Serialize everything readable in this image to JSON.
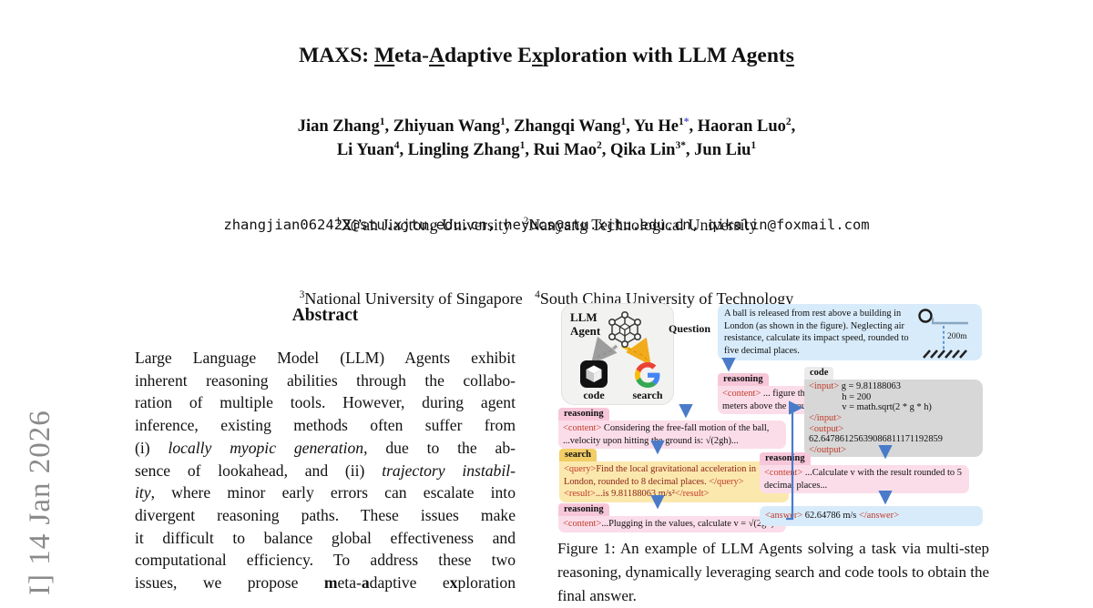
{
  "watermark": {
    "text": "I]  14 Jan 2026",
    "color": "#8a8a8a"
  },
  "title": {
    "segments": [
      {
        "t": "MAXS: "
      },
      {
        "t": "M",
        "u": 1
      },
      {
        "t": "eta-"
      },
      {
        "t": "A",
        "u": 1
      },
      {
        "t": "daptive E"
      },
      {
        "t": "x",
        "u": 1
      },
      {
        "t": "ploration with LLM Agent"
      },
      {
        "t": "s",
        "u": 1
      }
    ]
  },
  "authors": {
    "line1": [
      {
        "t": "Jian Zhang"
      },
      {
        "t": "1",
        "sup": 1
      },
      {
        "t": ", Zhiyuan Wang"
      },
      {
        "t": "1",
        "sup": 1
      },
      {
        "t": ", Zhangqi Wang"
      },
      {
        "t": "1",
        "sup": 1
      },
      {
        "t": ", Yu He"
      },
      {
        "t": "1",
        "sup": 1
      },
      {
        "t": "*",
        "sup": 1,
        "c": "blue"
      },
      {
        "t": ", Haoran Luo"
      },
      {
        "t": "2",
        "sup": 1
      },
      {
        "t": ","
      }
    ],
    "line2": [
      {
        "t": "Li Yuan"
      },
      {
        "t": "4",
        "sup": 1
      },
      {
        "t": ", Lingling Zhang"
      },
      {
        "t": "1",
        "sup": 1
      },
      {
        "t": ", Rui Mao"
      },
      {
        "t": "2",
        "sup": 1
      },
      {
        "t": ", Qika Lin"
      },
      {
        "t": "3*",
        "sup": 1
      },
      {
        "t": ", Jun Liu"
      },
      {
        "t": "1",
        "sup": 1
      }
    ]
  },
  "affiliations": {
    "line1": [
      {
        "t": "1",
        "sup": 1
      },
      {
        "t": "Xi’an Jiaotong University"
      },
      {
        "t": "   "
      },
      {
        "t": "2",
        "sup": 1
      },
      {
        "t": "Nanyang Technological University"
      }
    ],
    "line2": [
      {
        "t": "3",
        "sup": 1
      },
      {
        "t": "National University of Singapore"
      },
      {
        "t": "   "
      },
      {
        "t": "4",
        "sup": 1
      },
      {
        "t": "South China University of Technology"
      }
    ]
  },
  "emails": "zhangjian062422@stu.xjtu.edu.cn, heyucs@stu.xjtu.edu.cn, qikalin@foxmail.com",
  "abstract": {
    "heading": "Abstract",
    "lines": [
      [
        {
          "t": "Large Language Model (LLM) Agents exhibit"
        }
      ],
      [
        {
          "t": "inherent reasoning abilities through the collabo-"
        }
      ],
      [
        {
          "t": "ration of multiple tools. However, during agent"
        }
      ],
      [
        {
          "t": "inference, existing methods often suffer from"
        }
      ],
      [
        {
          "t": "(i) "
        },
        {
          "t": "locally myopic generation",
          "i": 1
        },
        {
          "t": ", due to the ab-"
        }
      ],
      [
        {
          "t": "sence of lookahead, and (ii) "
        },
        {
          "t": "trajectory instabil-",
          "i": 1
        }
      ],
      [
        {
          "t": "ity",
          "i": 1
        },
        {
          "t": ", where minor early errors can escalate into"
        }
      ],
      [
        {
          "t": "divergent reasoning paths. These issues make"
        }
      ],
      [
        {
          "t": "it difficult to balance global effectiveness and"
        }
      ],
      [
        {
          "t": "computational efficiency. To address these two"
        }
      ],
      [
        {
          "t": "issues, we propose "
        },
        {
          "t": "m",
          "b": 1
        },
        {
          "t": "eta-"
        },
        {
          "t": "a",
          "b": 1
        },
        {
          "t": "daptive e"
        },
        {
          "t": "x",
          "b": 1
        },
        {
          "t": "ploration"
        }
      ]
    ]
  },
  "figure": {
    "agent": {
      "name_line1": "LLM",
      "name_line2": "Agent",
      "tool_code": "code",
      "tool_search": "search"
    },
    "question": {
      "label": "Question",
      "text": "A ball is released from rest above a building in London (as shown in the figure). Neglecting air resistance, calculate its impact speed, rounded to five decimal places.",
      "height_label": "200m"
    },
    "steps": {
      "reasoning1": {
        "header": "reasoning",
        "segments": [
          {
            "t": "<content>",
            "c": "tag"
          },
          {
            "t": " ... figure that the ball is 200 meters above the ground."
          }
        ]
      },
      "reasoning2": {
        "header": "reasoning",
        "segments": [
          {
            "t": "<content>",
            "c": "tag"
          },
          {
            "t": " Considering the free-fall motion of the ball, ...velocity upon hitting the ground is: √(2gh)..."
          }
        ]
      },
      "search": {
        "header": "search",
        "segments": [
          {
            "t": "<query>",
            "c": "tag"
          },
          {
            "t": "Find the local gravitational acceleration in London, rounded to 8 decimal places. ",
            "c": "dred"
          },
          {
            "t": "</query>",
            "c": "tag"
          },
          {
            "br": 1
          },
          {
            "t": "<result>",
            "c": "tag"
          },
          {
            "t": "...is 9.81188063 m/s²",
            "c": "dred"
          },
          {
            "t": "</result>",
            "c": "tag"
          }
        ]
      },
      "reasoning3": {
        "header": "reasoning",
        "segments": [
          {
            "t": "<content>",
            "c": "tag"
          },
          {
            "t": "...Plugging in the values, calculate v = √(2gh)"
          }
        ]
      },
      "code": {
        "header": "code",
        "lines": [
          [
            {
              "t": "<input>",
              "c": "tag"
            },
            {
              "t": " g = 9.81188063"
            }
          ],
          [
            {
              "t": "              h = 200"
            }
          ],
          [
            {
              "t": "              v = math.sqrt(2 * g * h)"
            }
          ],
          [
            {
              "t": "</input>",
              "c": "tag"
            }
          ],
          [
            {
              "t": "<output>",
              "c": "tag"
            }
          ],
          [
            {
              "t": "62.64786125639086811171192859"
            }
          ],
          [
            {
              "t": "</output>",
              "c": "tag"
            }
          ]
        ]
      },
      "reasoning4": {
        "header": "reasoning",
        "segments": [
          {
            "t": "<content>",
            "c": "tag"
          },
          {
            "t": " ...Calculate v with the result rounded to 5 decimal places..."
          }
        ]
      },
      "answer": {
        "segments": [
          {
            "t": "<answer>",
            "c": "tag"
          },
          {
            "t": " 62.64786 m/s "
          },
          {
            "t": "</answer>",
            "c": "tag"
          }
        ]
      }
    },
    "caption": "Figure 1: An example of LLM Agents solving a task via multi-step reasoning, dynamically leveraging search and code tools to obtain the final answer."
  },
  "colors": {
    "tag_red": "#c23b2b",
    "search_text_red": "#8c2418",
    "arrow_blue": "#4a7bc9",
    "question_answer_blue": "#d8ebfa",
    "reasoning_pink": "#fbdde9",
    "search_yellow": "#fbe8ad",
    "code_gray": "#d7d7d7",
    "watermark_gray": "#8a8a8a",
    "google_blue": "#4285F4",
    "google_red": "#EA4335",
    "google_yellow": "#FBBC05",
    "google_green": "#34A853"
  }
}
